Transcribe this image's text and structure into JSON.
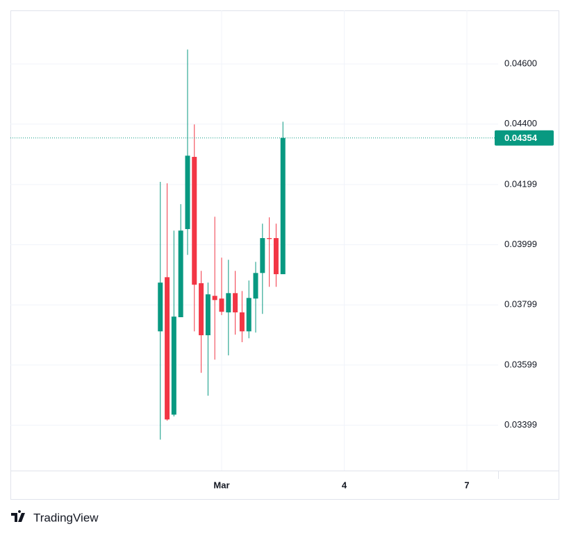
{
  "chart_data": {
    "type": "candlestick",
    "up_color": "#089981",
    "down_color": "#f23645",
    "grid": true,
    "xlim": [
      -4.167,
      7.765
    ],
    "xticks": [
      {
        "value": 1,
        "label": "Mar"
      },
      {
        "value": 4,
        "label": "4"
      },
      {
        "value": 7,
        "label": "7"
      }
    ],
    "ylim": [
      0.03248,
      0.04778
    ],
    "yticks": [
      {
        "value": 0.046,
        "label": "0.04600"
      },
      {
        "value": 0.044,
        "label": "0.04400"
      },
      {
        "value": 0.04199,
        "label": "0.04199"
      },
      {
        "value": 0.03999,
        "label": "0.03999"
      },
      {
        "value": 0.03799,
        "label": "0.03799"
      },
      {
        "value": 0.03599,
        "label": "0.03599"
      },
      {
        "value": 0.03399,
        "label": "0.03399"
      }
    ],
    "last_price": 0.04354,
    "series": {
      "x": [
        -0.5,
        -0.333,
        -0.167,
        0,
        0.167,
        0.333,
        0.5,
        0.667,
        0.833,
        1,
        1.167,
        1.333,
        1.5,
        1.667,
        1.833,
        2,
        2.167,
        2.333,
        2.5
      ],
      "open": [
        0.03711,
        0.03891,
        0.03434,
        0.03758,
        0.04051,
        0.04291,
        0.03871,
        0.03698,
        0.03829,
        0.0382,
        0.03774,
        0.03838,
        0.03774,
        0.03711,
        0.0382,
        0.03905,
        0.04021,
        0.04021,
        0.03901
      ],
      "high": [
        0.04208,
        0.04203,
        0.04046,
        0.04134,
        0.04648,
        0.04399,
        0.03912,
        0.03873,
        0.04092,
        0.03956,
        0.03949,
        0.03912,
        0.03845,
        0.0388,
        0.03942,
        0.04069,
        0.0409,
        0.04069,
        0.04408
      ],
      "low": [
        0.03351,
        0.03414,
        0.03428,
        0.03758,
        0.03965,
        0.03711,
        0.03573,
        0.03497,
        0.03617,
        0.03765,
        0.03631,
        0.037,
        0.03675,
        0.03688,
        0.03707,
        0.03769,
        0.03859,
        0.03859,
        0.03901
      ],
      "close": [
        0.03873,
        0.03418,
        0.0376,
        0.04046,
        0.04295,
        0.03866,
        0.03698,
        0.03834,
        0.03815,
        0.03776,
        0.03838,
        0.03774,
        0.03711,
        0.03822,
        0.03905,
        0.04021,
        0.04018,
        0.03901,
        0.04354
      ]
    }
  },
  "footer": {
    "brand": "TradingView"
  }
}
